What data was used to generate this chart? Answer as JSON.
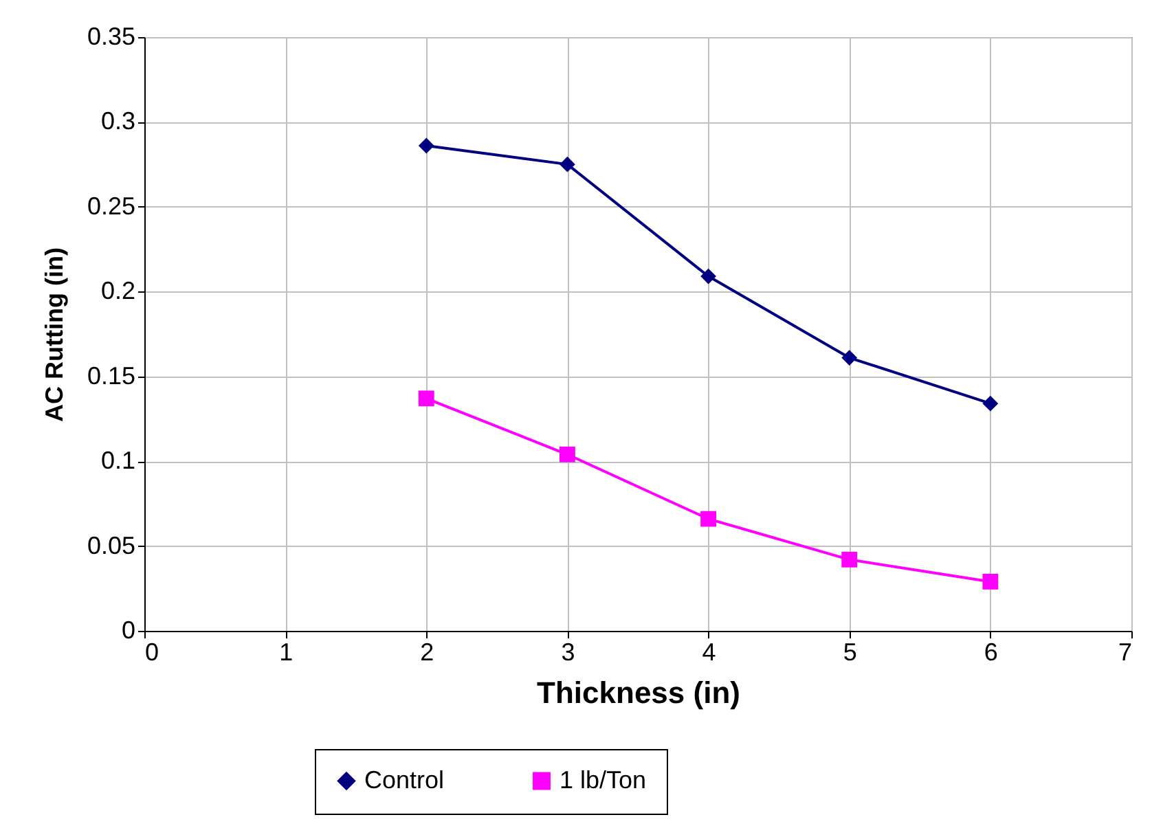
{
  "chart_data": {
    "type": "line",
    "xlabel": "Thickness (in)",
    "ylabel": "AC  Rutting (in)",
    "x": [
      2,
      3,
      4,
      5,
      6
    ],
    "series": [
      {
        "name": "Control",
        "color": "#000080",
        "marker": "diamond",
        "values": [
          0.286,
          0.275,
          0.209,
          0.161,
          0.134
        ]
      },
      {
        "name": "1 lb/Ton",
        "color": "#ff00ff",
        "marker": "square",
        "values": [
          0.137,
          0.104,
          0.066,
          0.042,
          0.029
        ]
      }
    ],
    "xlim": [
      0,
      7
    ],
    "xticks": [
      0,
      1,
      2,
      3,
      4,
      5,
      6,
      7
    ],
    "ylim": [
      0,
      0.35
    ],
    "yticks": [
      0,
      0.05,
      0.1,
      0.15,
      0.2,
      0.25,
      0.3,
      0.35
    ],
    "grid": true,
    "legend": "bottom",
    "line_style": "solid"
  }
}
